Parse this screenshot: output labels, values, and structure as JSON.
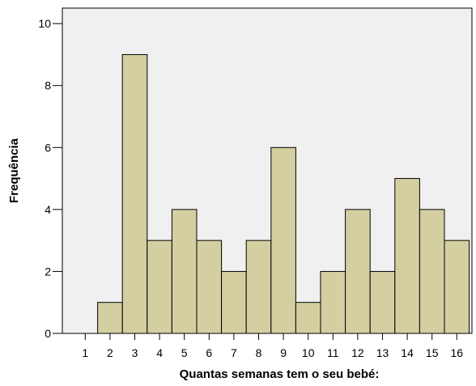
{
  "chart_data": {
    "type": "bar",
    "xlabel": "Quantas semanas tem o seu bebé:",
    "ylabel": "Frequência",
    "categories": [
      "1",
      "2",
      "3",
      "4",
      "5",
      "6",
      "7",
      "8",
      "9",
      "10",
      "11",
      "12",
      "13",
      "14",
      "15",
      "16"
    ],
    "values": [
      0,
      1,
      9,
      3,
      4,
      3,
      2,
      3,
      6,
      1,
      2,
      4,
      2,
      5,
      4,
      3
    ],
    "ylim": [
      0,
      10.5
    ],
    "yticks": [
      0,
      2,
      4,
      6,
      8,
      10
    ],
    "grid": false,
    "legend": "none",
    "colors": {
      "plot_background": "#f0f0f0",
      "bar_fill": "#d3cfa0",
      "bar_stroke": "#000000"
    }
  }
}
